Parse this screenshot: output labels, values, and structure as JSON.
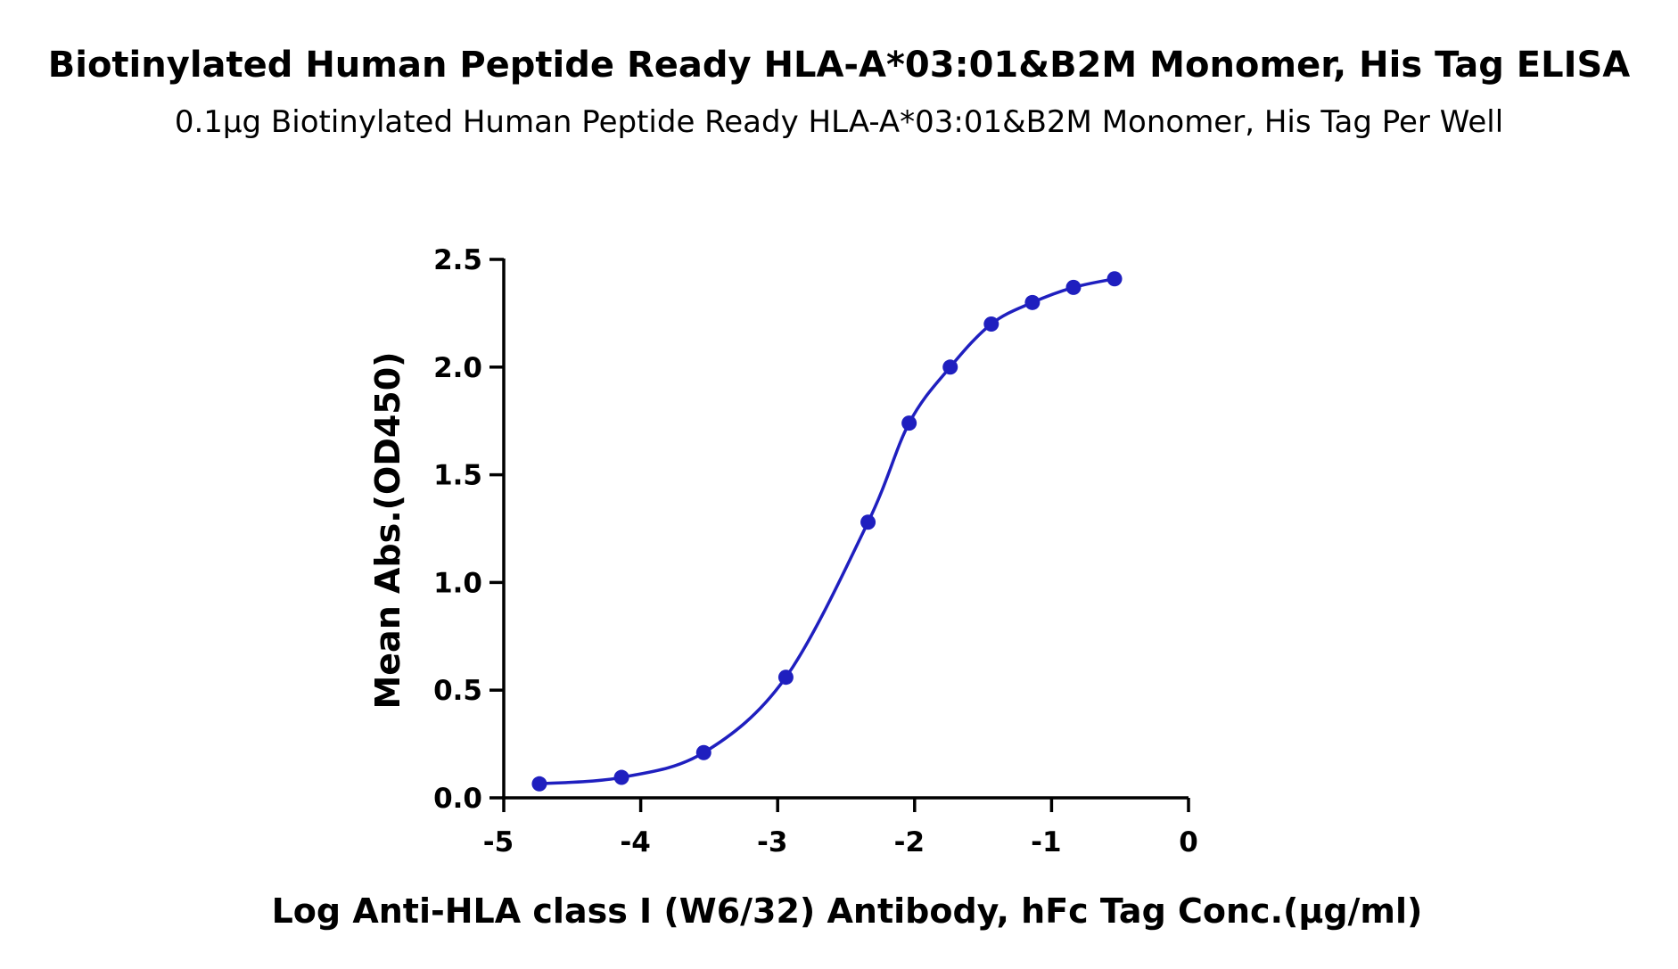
{
  "chart_data": {
    "type": "line",
    "title": "Biotinylated Human Peptide Ready HLA-A*03:01&B2M Monomer, His Tag ELISA",
    "subtitle": "0.1μg Biotinylated Human Peptide Ready HLA-A*03:01&B2M Monomer, His Tag Per Well",
    "xlabel": "Log Anti-HLA class I (W6/32) Antibody, hFc Tag Conc.(μg/ml)",
    "ylabel": "Mean Abs.(OD450)",
    "xlim": [
      -5,
      0
    ],
    "ylim": [
      0,
      2.5
    ],
    "xticks": [
      "-5",
      "-4",
      "-3",
      "-2",
      "-1",
      "0"
    ],
    "yticks": [
      "0.0",
      "0.5",
      "1.0",
      "1.5",
      "2.0",
      "2.5"
    ],
    "grid": false,
    "series_color": "#1f1fbf",
    "points": [
      {
        "x": -4.74,
        "y": 0.065
      },
      {
        "x": -4.14,
        "y": 0.095
      },
      {
        "x": -3.54,
        "y": 0.21
      },
      {
        "x": -2.94,
        "y": 0.56
      },
      {
        "x": -2.34,
        "y": 1.28
      },
      {
        "x": -2.04,
        "y": 1.74
      },
      {
        "x": -1.74,
        "y": 2.0
      },
      {
        "x": -1.44,
        "y": 2.2
      },
      {
        "x": -1.14,
        "y": 2.3
      },
      {
        "x": -0.84,
        "y": 2.37
      },
      {
        "x": -0.54,
        "y": 2.41
      }
    ]
  }
}
